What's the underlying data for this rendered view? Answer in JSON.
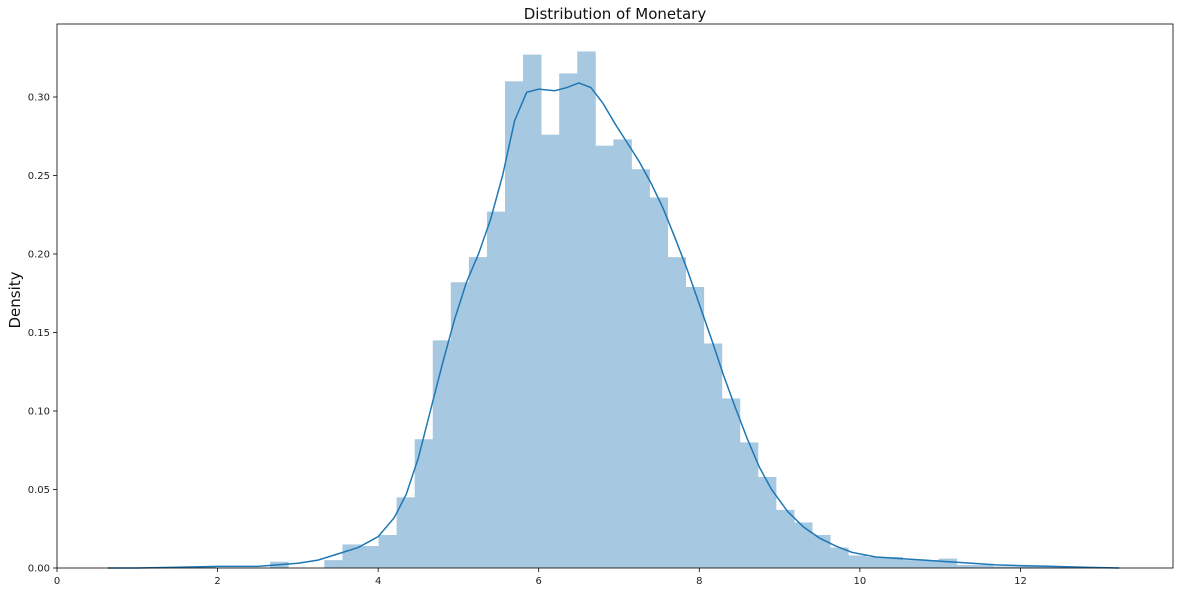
{
  "chart_data": {
    "type": "bar",
    "title": "Distribution of Monetary",
    "xlabel": "",
    "ylabel": "Density",
    "xlim": [
      0,
      13.9
    ],
    "ylim": [
      0,
      0.3465
    ],
    "xticks": [
      0,
      2,
      4,
      6,
      8,
      10,
      12
    ],
    "xtick_labels": [
      "0",
      "2",
      "4",
      "6",
      "8",
      "10",
      "12"
    ],
    "yticks": [
      0.0,
      0.05,
      0.1,
      0.15,
      0.2,
      0.25,
      0.3
    ],
    "ytick_labels": [
      "0.00",
      "0.05",
      "0.10",
      "0.15",
      "0.20",
      "0.25",
      "0.30"
    ],
    "grid": false,
    "bar_color": "#a6c8e0",
    "kde_color": "#1f77b4",
    "histogram": {
      "bin_edges": [
        0.63,
        0.855,
        1.08,
        1.305,
        1.53,
        1.755,
        1.98,
        2.205,
        2.43,
        2.655,
        2.88,
        3.105,
        3.33,
        3.555,
        3.78,
        4.005,
        4.23,
        4.455,
        4.68,
        4.905,
        5.13,
        5.355,
        5.58,
        5.805,
        6.03,
        6.255,
        6.48,
        6.705,
        6.93,
        7.155,
        7.38,
        7.605,
        7.83,
        8.055,
        8.28,
        8.505,
        8.73,
        8.955,
        9.18,
        9.405,
        9.63,
        9.855,
        10.08,
        10.305,
        10.53,
        10.755,
        10.98,
        11.205,
        11.43,
        11.655,
        11.88,
        12.105,
        12.33,
        12.555,
        12.78,
        13.005,
        13.23
      ],
      "densities": [
        0.0,
        0.0,
        0.0,
        0.0,
        0.0,
        0.001,
        0.0,
        0.0,
        0.0,
        0.004,
        0.0,
        0.0,
        0.005,
        0.015,
        0.014,
        0.021,
        0.045,
        0.082,
        0.145,
        0.182,
        0.198,
        0.227,
        0.31,
        0.327,
        0.276,
        0.315,
        0.329,
        0.269,
        0.273,
        0.254,
        0.236,
        0.198,
        0.179,
        0.143,
        0.108,
        0.08,
        0.058,
        0.037,
        0.029,
        0.021,
        0.013,
        0.008,
        0.007,
        0.007,
        0.005,
        0.005,
        0.006,
        0.002,
        0.002,
        0.001,
        0.001,
        0.001,
        0.001,
        0.0,
        0.0,
        0.0
      ]
    },
    "kde": {
      "x": [
        0.63,
        1.0,
        1.5,
        2.0,
        2.5,
        3.0,
        3.25,
        3.5,
        3.75,
        4.0,
        4.2,
        4.35,
        4.5,
        4.65,
        4.8,
        4.95,
        5.1,
        5.25,
        5.4,
        5.55,
        5.7,
        5.85,
        6.0,
        6.2,
        6.35,
        6.5,
        6.65,
        6.8,
        6.95,
        7.1,
        7.25,
        7.4,
        7.55,
        7.7,
        7.85,
        8.0,
        8.15,
        8.3,
        8.45,
        8.6,
        8.75,
        8.9,
        9.1,
        9.3,
        9.5,
        9.7,
        9.9,
        10.2,
        10.5,
        10.8,
        11.1,
        11.4,
        11.7,
        12.0,
        12.4,
        12.8,
        13.23
      ],
      "y": [
        0.0,
        0.0,
        0.0005,
        0.001,
        0.001,
        0.003,
        0.005,
        0.009,
        0.013,
        0.02,
        0.032,
        0.047,
        0.07,
        0.1,
        0.13,
        0.158,
        0.182,
        0.2,
        0.222,
        0.25,
        0.285,
        0.303,
        0.305,
        0.304,
        0.306,
        0.309,
        0.306,
        0.296,
        0.283,
        0.271,
        0.259,
        0.245,
        0.229,
        0.21,
        0.19,
        0.168,
        0.146,
        0.123,
        0.102,
        0.082,
        0.064,
        0.05,
        0.036,
        0.026,
        0.019,
        0.014,
        0.01,
        0.007,
        0.006,
        0.005,
        0.004,
        0.003,
        0.002,
        0.0015,
        0.001,
        0.0005,
        0.0
      ]
    }
  }
}
